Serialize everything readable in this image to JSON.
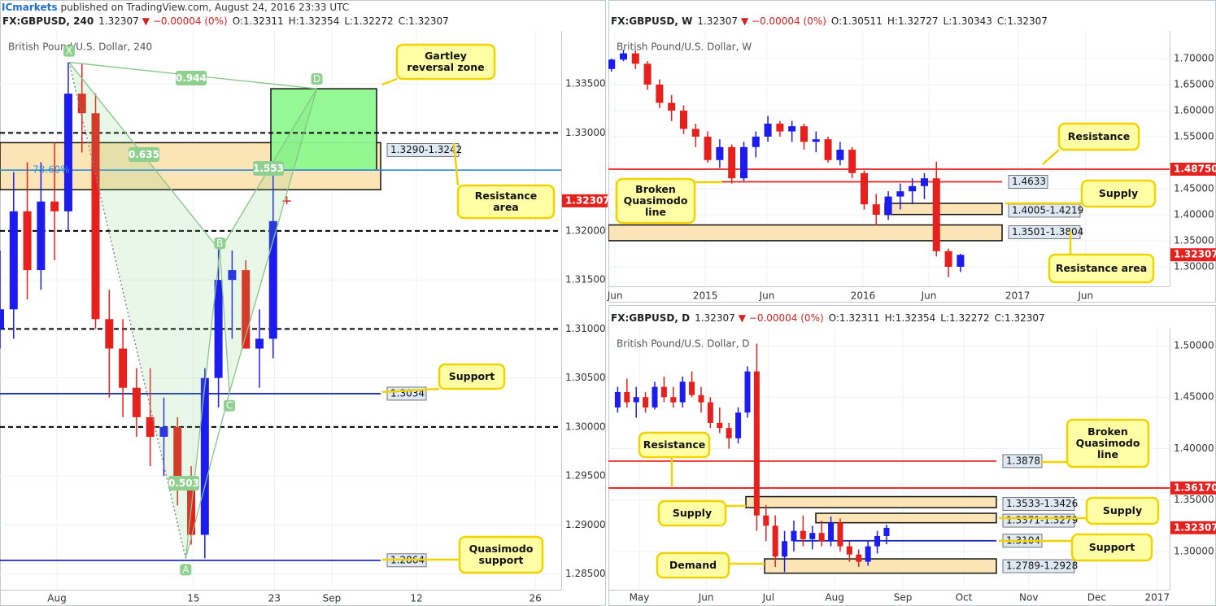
{
  "header": {
    "publisher": "ICmarkets",
    "published": "published on TradingView.com, August 24, 2016 23:33 UTC"
  },
  "chart_data": [
    {
      "type": "candlestick",
      "title": "British Pound/U.S. Dollar, 240",
      "header": {
        "symbol": "FX:GBPUSD, 240",
        "last": "1.32307",
        "change": "▼ −0.00004 (0%)",
        "ohlc": [
          "O:1.32311",
          "H:1.32354",
          "L:1.32272",
          "C:1.32307"
        ]
      },
      "up_color": "#1c1cf0",
      "down_color": "#e5201d",
      "x": [
        0,
        1,
        2,
        3,
        4,
        5,
        6,
        7,
        8,
        9,
        10,
        11,
        12,
        13,
        14,
        15,
        16,
        17,
        18,
        19,
        20,
        21
      ],
      "open": [
        1.31,
        1.312,
        1.322,
        1.316,
        1.323,
        1.322,
        1.334,
        1.332,
        1.311,
        1.308,
        1.304,
        1.301,
        1.299,
        1.3,
        1.294,
        1.289,
        1.305,
        1.315,
        1.316,
        1.308,
        1.309,
        1.32311
      ],
      "high": [
        1.318,
        1.326,
        1.327,
        1.327,
        1.329,
        1.3372,
        1.337,
        1.334,
        1.314,
        1.311,
        1.306,
        1.306,
        1.303,
        1.301,
        1.296,
        1.306,
        1.3185,
        1.318,
        1.317,
        1.312,
        1.326,
        1.32354
      ],
      "low": [
        1.308,
        1.309,
        1.313,
        1.314,
        1.317,
        1.32,
        1.328,
        1.31,
        1.303,
        1.301,
        1.299,
        1.296,
        1.295,
        1.292,
        1.288,
        1.2866,
        1.302,
        1.309,
        1.308,
        1.304,
        1.307,
        1.32272
      ],
      "close": [
        1.312,
        1.322,
        1.316,
        1.323,
        1.322,
        1.334,
        1.332,
        1.311,
        1.308,
        1.304,
        1.301,
        1.299,
        1.3,
        1.294,
        1.289,
        1.305,
        1.315,
        1.316,
        1.308,
        1.309,
        1.321,
        1.32307
      ],
      "xlim": [
        0,
        41.1
      ],
      "ylim": [
        1.2834,
        1.3404
      ],
      "xticks": [
        {
          "value": 4.17,
          "label": "Aug"
        },
        {
          "value": 14.17,
          "label": "15"
        },
        {
          "value": 20.1,
          "label": "23"
        },
        {
          "value": 24.3,
          "label": "Sep"
        },
        {
          "value": 30.5,
          "label": "12"
        },
        {
          "value": 39.2,
          "label": "26"
        }
      ],
      "yticks": [
        {
          "value": 1.285,
          "label": "1.28500"
        },
        {
          "value": 1.29,
          "label": "1.29000"
        },
        {
          "value": 1.295,
          "label": "1.29500"
        },
        {
          "value": 1.3,
          "label": "1.30000"
        },
        {
          "value": 1.305,
          "label": "1.30500"
        },
        {
          "value": 1.31,
          "label": "1.31000"
        },
        {
          "value": 1.315,
          "label": "1.31500"
        },
        {
          "value": 1.32,
          "label": "1.32000"
        },
        {
          "value": 1.33,
          "label": "1.33000"
        },
        {
          "value": 1.335,
          "label": "1.33500"
        }
      ],
      "last_price": {
        "value": 1.32307,
        "label": "1.32307"
      },
      "zones": [
        {
          "label": "1.3290-1.3242",
          "high": 1.329,
          "low": 1.3242,
          "color": "#fbe4b5"
        },
        {
          "high": 1.3345,
          "low": 1.3262,
          "color": "#8ef98e"
        }
      ],
      "levels": [
        {
          "value": 1.33,
          "style": "dashed",
          "color": "#000000"
        },
        {
          "value": 1.32,
          "style": "dashed",
          "color": "#000000"
        },
        {
          "value": 1.31,
          "style": "dashed",
          "color": "#000000"
        },
        {
          "value": 1.3,
          "style": "dashed",
          "color": "#000000"
        },
        {
          "value": 1.3262,
          "name": "78.60%",
          "color": "#3d8fd6"
        },
        {
          "value": 1.3034,
          "label": "1.3034",
          "color": "#1f2db3"
        },
        {
          "value": 1.2864,
          "label": "1.2864",
          "color": "#1f2db3"
        }
      ],
      "pattern": [
        {
          "label": "X",
          "x": 5.06,
          "y": 1.3372
        },
        {
          "label": "A",
          "x": 13.6,
          "y": 1.2866
        },
        {
          "label": "B",
          "x": 16.1,
          "y": 1.318
        },
        {
          "label": "C",
          "x": 16.8,
          "y": 1.3035
        },
        {
          "label": "D",
          "x": 23.2,
          "y": 1.3345
        }
      ],
      "ratios": [
        "0.944",
        "0.635",
        "1.553",
        "0.503"
      ],
      "callouts": [
        "Gartley reversal zone",
        "Resistance area",
        "Support",
        "Quasimodo support"
      ]
    },
    {
      "type": "candlestick",
      "title": "British Pound/U.S. Dollar, W",
      "header": {
        "symbol": "FX:GBPUSD, W",
        "last": "1.32307",
        "change": "▼ −0.00004 (0%)",
        "ohlc": [
          "O:1.30511",
          "H:1.32727",
          "L:1.30343",
          "C:1.32307"
        ]
      },
      "up_color": "#1c1cf0",
      "down_color": "#e5201d",
      "x": [
        1,
        5,
        9,
        13,
        17,
        21,
        25,
        29,
        33,
        37,
        41,
        45,
        49,
        53,
        57,
        61,
        65,
        69,
        73,
        77,
        81,
        85,
        89,
        93,
        97,
        101,
        105,
        109,
        113,
        117
      ],
      "open": [
        1.68,
        1.698,
        1.71,
        1.69,
        1.65,
        1.615,
        1.6,
        1.565,
        1.55,
        1.505,
        1.53,
        1.47,
        1.53,
        1.55,
        1.575,
        1.56,
        1.57,
        1.54,
        1.545,
        1.505,
        1.525,
        1.48,
        1.42,
        1.4,
        1.435,
        1.445,
        1.455,
        1.47,
        1.33,
        1.3
      ],
      "high": [
        1.7,
        1.717,
        1.716,
        1.695,
        1.66,
        1.63,
        1.61,
        1.575,
        1.56,
        1.545,
        1.535,
        1.54,
        1.56,
        1.59,
        1.58,
        1.58,
        1.575,
        1.56,
        1.55,
        1.54,
        1.53,
        1.485,
        1.44,
        1.445,
        1.46,
        1.47,
        1.48,
        1.502,
        1.335,
        1.325
      ],
      "low": [
        1.675,
        1.695,
        1.68,
        1.64,
        1.605,
        1.58,
        1.555,
        1.53,
        1.5,
        1.49,
        1.46,
        1.465,
        1.51,
        1.54,
        1.55,
        1.54,
        1.525,
        1.52,
        1.5,
        1.495,
        1.47,
        1.41,
        1.38,
        1.39,
        1.41,
        1.42,
        1.43,
        1.32,
        1.28,
        1.29
      ],
      "close": [
        1.698,
        1.71,
        1.69,
        1.65,
        1.615,
        1.6,
        1.565,
        1.55,
        1.505,
        1.53,
        1.47,
        1.53,
        1.55,
        1.575,
        1.56,
        1.57,
        1.54,
        1.545,
        1.505,
        1.525,
        1.48,
        1.42,
        1.4,
        1.435,
        1.445,
        1.455,
        1.47,
        1.33,
        1.3,
        1.323
      ],
      "xlim": [
        0,
        186.5
      ],
      "ylim": [
        1.2625,
        1.7531
      ],
      "xticks": [
        {
          "value": 2.2,
          "label": "Jun"
        },
        {
          "value": 32.2,
          "label": "2015"
        },
        {
          "value": 52.7,
          "label": "Jun"
        },
        {
          "value": 84.6,
          "label": "2016"
        },
        {
          "value": 106.5,
          "label": "Jun"
        },
        {
          "value": 136,
          "label": "2017"
        },
        {
          "value": 158.6,
          "label": "Jun"
        }
      ],
      "yticks": [
        {
          "value": 1.3,
          "label": "1.30000"
        },
        {
          "value": 1.35,
          "label": "1.35000"
        },
        {
          "value": 1.4,
          "label": "1.40000"
        },
        {
          "value": 1.45,
          "label": "1.45000"
        },
        {
          "value": 1.55,
          "label": "1.55000"
        },
        {
          "value": 1.6,
          "label": "1.60000"
        },
        {
          "value": 1.65,
          "label": "1.65000"
        },
        {
          "value": 1.7,
          "label": "1.70000"
        }
      ],
      "last_price": {
        "value": 1.32307,
        "label": "1.32307"
      },
      "zones": [
        {
          "label": "1.4005-1.4219",
          "high": 1.4219,
          "low": 1.4005,
          "color": "#fbe4b5"
        },
        {
          "label": "1.3501-1.3804",
          "high": 1.3804,
          "low": 1.3501,
          "color": "#fbe4b5"
        }
      ],
      "levels": [
        {
          "value": 1.4875,
          "label": "1.48750",
          "axis": true,
          "color": "#e5201d"
        },
        {
          "value": 1.4633,
          "label": "1.4633",
          "color": "#e5201d"
        }
      ],
      "callouts": [
        "Resistance",
        "Supply",
        "Broken Quasimodo line",
        "Resistance area"
      ]
    },
    {
      "type": "candlestick",
      "title": "British Pound/U.S. Dollar, D",
      "header": {
        "symbol": "FX:GBPUSD, D",
        "last": "1.32307",
        "change": "▼ −0.00004 (0%)",
        "ohlc": [
          "O:1.32311",
          "H:1.32354",
          "L:1.32272",
          "C:1.32307"
        ]
      },
      "up_color": "#1c1cf0",
      "down_color": "#e5201d",
      "x": [
        3,
        6,
        9,
        12,
        15,
        18,
        21,
        24,
        27,
        30,
        33,
        36,
        39,
        42,
        45,
        48,
        51,
        54,
        57,
        60,
        63,
        66,
        69,
        72,
        75,
        78,
        81,
        84,
        87,
        90
      ],
      "open": [
        1.44,
        1.455,
        1.445,
        1.45,
        1.44,
        1.46,
        1.45,
        1.445,
        1.465,
        1.452,
        1.445,
        1.425,
        1.42,
        1.41,
        1.435,
        1.475,
        1.335,
        1.325,
        1.295,
        1.31,
        1.32,
        1.312,
        1.318,
        1.31,
        1.328,
        1.305,
        1.297,
        1.29,
        1.305,
        1.315
      ],
      "high": [
        1.46,
        1.468,
        1.46,
        1.455,
        1.465,
        1.47,
        1.46,
        1.47,
        1.475,
        1.46,
        1.45,
        1.44,
        1.425,
        1.44,
        1.48,
        1.502,
        1.345,
        1.335,
        1.32,
        1.33,
        1.335,
        1.325,
        1.33,
        1.334,
        1.332,
        1.31,
        1.302,
        1.31,
        1.32,
        1.326
      ],
      "low": [
        1.435,
        1.44,
        1.43,
        1.435,
        1.438,
        1.445,
        1.44,
        1.44,
        1.45,
        1.435,
        1.42,
        1.415,
        1.4,
        1.405,
        1.43,
        1.32,
        1.31,
        1.285,
        1.28,
        1.3,
        1.305,
        1.302,
        1.305,
        1.305,
        1.3,
        1.29,
        1.285,
        1.286,
        1.298,
        1.307
      ],
      "close": [
        1.455,
        1.445,
        1.45,
        1.44,
        1.46,
        1.45,
        1.445,
        1.465,
        1.452,
        1.445,
        1.425,
        1.42,
        1.41,
        1.435,
        1.475,
        1.335,
        1.325,
        1.295,
        1.31,
        1.32,
        1.312,
        1.318,
        1.31,
        1.328,
        1.305,
        1.297,
        1.29,
        1.305,
        1.315,
        1.323
      ],
      "xlim": [
        0,
        181.6
      ],
      "ylim": [
        1.2628,
        1.5174
      ],
      "xticks": [
        {
          "value": 10,
          "label": "May"
        },
        {
          "value": 31.6,
          "label": "Jun"
        },
        {
          "value": 51.8,
          "label": "Jul"
        },
        {
          "value": 73.2,
          "label": "Aug"
        },
        {
          "value": 95.3,
          "label": "Sep"
        },
        {
          "value": 115,
          "label": "Oct"
        },
        {
          "value": 136,
          "label": "Nov"
        },
        {
          "value": 158,
          "label": "Dec"
        },
        {
          "value": 177.6,
          "label": "2017"
        }
      ],
      "yticks": [
        {
          "value": 1.3,
          "label": "1.30000"
        },
        {
          "value": 1.35,
          "label": "1.35000"
        },
        {
          "value": 1.4,
          "label": "1.40000"
        },
        {
          "value": 1.45,
          "label": "1.45000"
        },
        {
          "value": 1.5,
          "label": "1.50000"
        }
      ],
      "last_price": {
        "value": 1.32307,
        "label": "1.32307"
      },
      "zones": [
        {
          "label": "1.3533-1.3426",
          "high": 1.3533,
          "low": 1.3426,
          "color": "#fbe4b5"
        },
        {
          "label": "1.3371-1.3279",
          "high": 1.3371,
          "low": 1.3279,
          "color": "#fbe4b5"
        },
        {
          "label": "1.2789-1.2928",
          "high": 1.2928,
          "low": 1.2789,
          "color": "#fbe4b5"
        }
      ],
      "levels": [
        {
          "value": 1.3878,
          "label": "1.3878",
          "color": "#e5201d"
        },
        {
          "value": 1.3617,
          "label": "1.36170",
          "axis": true,
          "color": "#e5201d"
        },
        {
          "value": 1.3104,
          "label": "1.3104",
          "color": "#1f2db3"
        }
      ],
      "callouts": [
        "Resistance",
        "Broken Quasimodo line",
        "Supply",
        "Supply",
        "Support",
        "Demand"
      ]
    }
  ]
}
